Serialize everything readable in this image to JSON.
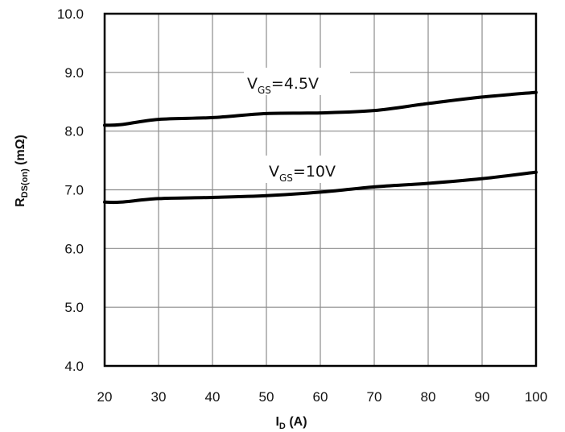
{
  "chart_data": {
    "type": "line",
    "xlabel": {
      "main": "I",
      "sub": "D",
      "suffix": " (A)"
    },
    "ylabel": {
      "main": "R",
      "sub": "DS(on)",
      "suffix": " (mΩ)"
    },
    "xlim": [
      20,
      100
    ],
    "ylim": [
      4.0,
      10.0
    ],
    "xticks": [
      "20",
      "30",
      "40",
      "50",
      "60",
      "70",
      "80",
      "90",
      "100"
    ],
    "yticks": [
      "4.0",
      "5.0",
      "6.0",
      "7.0",
      "8.0",
      "9.0",
      "10.0"
    ],
    "grid": true,
    "legend": "none",
    "series": [
      {
        "label": {
          "main": "V",
          "sub": "GS",
          "suffix": "=4.5V"
        },
        "color": "#000000",
        "x": [
          20,
          23,
          30,
          40,
          50,
          60,
          70,
          80,
          90,
          100
        ],
        "y": [
          8.1,
          8.11,
          8.2,
          8.23,
          8.3,
          8.31,
          8.35,
          8.47,
          8.58,
          8.66
        ]
      },
      {
        "label": {
          "main": "V",
          "sub": "GS",
          "suffix": "=10V"
        },
        "color": "#000000",
        "x": [
          20,
          23,
          30,
          40,
          50,
          60,
          70,
          80,
          90,
          100
        ],
        "y": [
          6.79,
          6.79,
          6.85,
          6.87,
          6.9,
          6.96,
          7.05,
          7.11,
          7.19,
          7.3
        ]
      }
    ]
  }
}
